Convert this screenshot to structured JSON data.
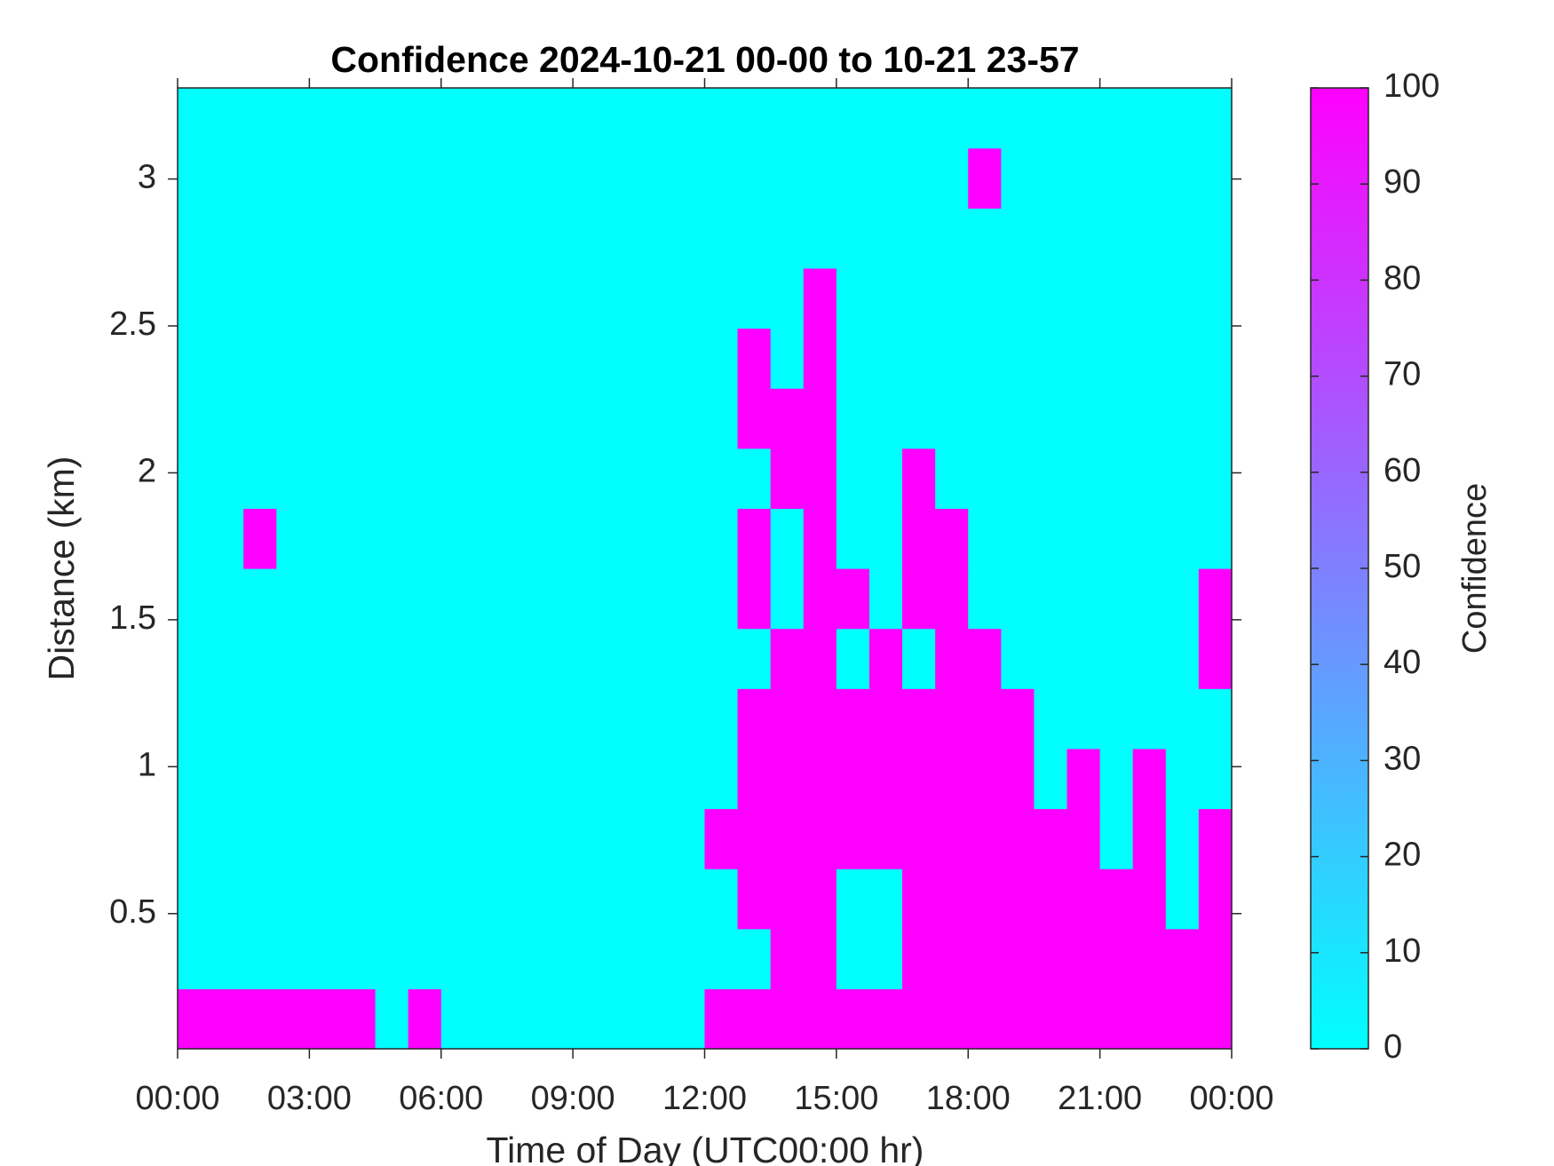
{
  "chart_data": {
    "type": "heatmap",
    "title": "Confidence 2024-10-21 00-00 to 10-21 23-57",
    "xlabel": "Time of Day (UTC00:00 hr)",
    "ylabel": "Distance (km)",
    "xlim": [
      0,
      24
    ],
    "xticks": [
      {
        "value": 0,
        "label": "00:00"
      },
      {
        "value": 3,
        "label": "03:00"
      },
      {
        "value": 6,
        "label": "06:00"
      },
      {
        "value": 9,
        "label": "09:00"
      },
      {
        "value": 12,
        "label": "12:00"
      },
      {
        "value": 15,
        "label": "15:00"
      },
      {
        "value": 18,
        "label": "18:00"
      },
      {
        "value": 21,
        "label": "21:00"
      },
      {
        "value": 24,
        "label": "00:00"
      }
    ],
    "ylim": [
      0.04,
      3.31
    ],
    "yticks": [
      0.5,
      1,
      1.5,
      2,
      2.5,
      3
    ],
    "colorbar": {
      "label": "Confidence",
      "clim": [
        0,
        100
      ],
      "ticks": [
        0,
        10,
        20,
        30,
        40,
        50,
        60,
        70,
        80,
        90,
        100
      ],
      "colormap": "cool"
    },
    "z": [
      [
        100,
        100,
        100,
        100,
        100,
        100,
        0,
        100,
        0,
        0,
        0,
        0,
        0,
        0,
        0,
        0,
        100,
        100,
        100,
        100,
        100,
        100,
        100,
        100,
        100,
        100,
        100,
        100,
        100,
        100,
        100,
        100
      ],
      [
        0,
        0,
        0,
        0,
        0,
        0,
        0,
        0,
        0,
        0,
        0,
        0,
        0,
        0,
        0,
        0,
        0,
        0,
        100,
        100,
        0,
        0,
        100,
        100,
        100,
        100,
        100,
        100,
        100,
        100,
        100,
        100
      ],
      [
        0,
        0,
        0,
        0,
        0,
        0,
        0,
        0,
        0,
        0,
        0,
        0,
        0,
        0,
        0,
        0,
        0,
        100,
        100,
        100,
        0,
        0,
        100,
        100,
        100,
        100,
        100,
        100,
        100,
        100,
        0,
        100
      ],
      [
        0,
        0,
        0,
        0,
        0,
        0,
        0,
        0,
        0,
        0,
        0,
        0,
        0,
        0,
        0,
        0,
        100,
        100,
        100,
        100,
        100,
        100,
        100,
        100,
        100,
        100,
        100,
        100,
        0,
        100,
        0,
        100
      ],
      [
        0,
        0,
        0,
        0,
        0,
        0,
        0,
        0,
        0,
        0,
        0,
        0,
        0,
        0,
        0,
        0,
        0,
        100,
        100,
        100,
        100,
        100,
        100,
        100,
        100,
        100,
        0,
        100,
        0,
        100,
        0,
        0
      ],
      [
        0,
        0,
        0,
        0,
        0,
        0,
        0,
        0,
        0,
        0,
        0,
        0,
        0,
        0,
        0,
        0,
        0,
        100,
        100,
        100,
        100,
        100,
        100,
        100,
        100,
        100,
        0,
        0,
        0,
        0,
        0,
        0
      ],
      [
        0,
        0,
        0,
        0,
        0,
        0,
        0,
        0,
        0,
        0,
        0,
        0,
        0,
        0,
        0,
        0,
        0,
        0,
        100,
        100,
        0,
        100,
        0,
        100,
        100,
        0,
        0,
        0,
        0,
        0,
        0,
        100
      ],
      [
        0,
        0,
        0,
        0,
        0,
        0,
        0,
        0,
        0,
        0,
        0,
        0,
        0,
        0,
        0,
        0,
        0,
        100,
        0,
        100,
        100,
        0,
        100,
        100,
        0,
        0,
        0,
        0,
        0,
        0,
        0,
        100
      ],
      [
        0,
        0,
        100,
        0,
        0,
        0,
        0,
        0,
        0,
        0,
        0,
        0,
        0,
        0,
        0,
        0,
        0,
        100,
        0,
        100,
        0,
        0,
        100,
        100,
        0,
        0,
        0,
        0,
        0,
        0,
        0,
        0
      ],
      [
        0,
        0,
        0,
        0,
        0,
        0,
        0,
        0,
        0,
        0,
        0,
        0,
        0,
        0,
        0,
        0,
        0,
        0,
        100,
        100,
        0,
        0,
        100,
        0,
        0,
        0,
        0,
        0,
        0,
        0,
        0,
        0
      ],
      [
        0,
        0,
        0,
        0,
        0,
        0,
        0,
        0,
        0,
        0,
        0,
        0,
        0,
        0,
        0,
        0,
        0,
        100,
        100,
        100,
        0,
        0,
        0,
        0,
        0,
        0,
        0,
        0,
        0,
        0,
        0,
        0
      ],
      [
        0,
        0,
        0,
        0,
        0,
        0,
        0,
        0,
        0,
        0,
        0,
        0,
        0,
        0,
        0,
        0,
        0,
        100,
        0,
        100,
        0,
        0,
        0,
        0,
        0,
        0,
        0,
        0,
        0,
        0,
        0,
        0
      ],
      [
        0,
        0,
        0,
        0,
        0,
        0,
        0,
        0,
        0,
        0,
        0,
        0,
        0,
        0,
        0,
        0,
        0,
        0,
        0,
        100,
        0,
        0,
        0,
        0,
        0,
        0,
        0,
        0,
        0,
        0,
        0,
        0
      ],
      [
        0,
        0,
        0,
        0,
        0,
        0,
        0,
        0,
        0,
        0,
        0,
        0,
        0,
        0,
        0,
        0,
        0,
        0,
        0,
        0,
        0,
        0,
        0,
        0,
        0,
        0,
        0,
        0,
        0,
        0,
        0,
        0
      ],
      [
        0,
        0,
        0,
        0,
        0,
        0,
        0,
        0,
        0,
        0,
        0,
        0,
        0,
        0,
        0,
        0,
        0,
        0,
        0,
        0,
        0,
        0,
        0,
        0,
        100,
        0,
        0,
        0,
        0,
        0,
        0,
        0
      ],
      [
        0,
        0,
        0,
        0,
        0,
        0,
        0,
        0,
        0,
        0,
        0,
        0,
        0,
        0,
        0,
        0,
        0,
        0,
        0,
        0,
        0,
        0,
        0,
        0,
        0,
        0,
        0,
        0,
        0,
        0,
        0,
        0
      ]
    ]
  }
}
